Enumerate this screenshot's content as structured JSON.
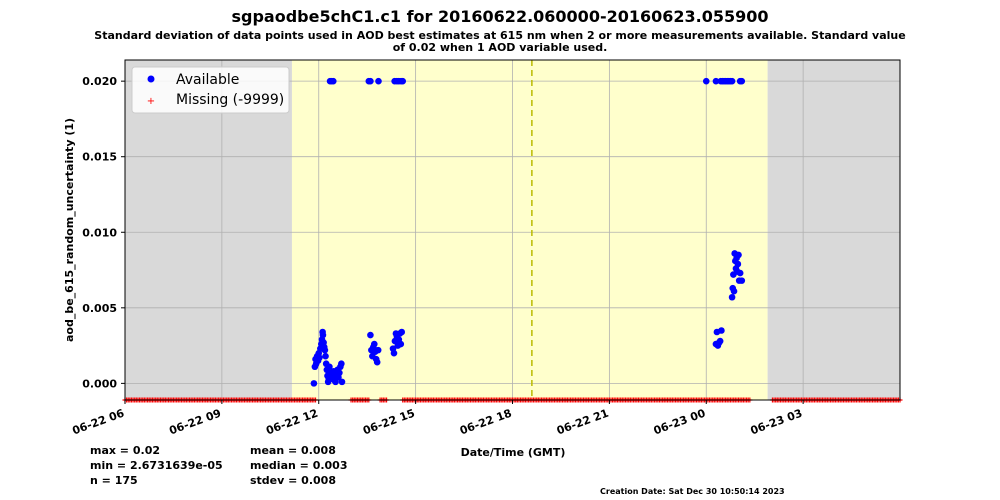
{
  "header": {
    "title": "sgpaodbe5chC1.c1 for 20160622.060000-20160623.055900",
    "subtitle": "Standard deviation of data points used in AOD best estimates at 615 nm when 2 or more measurements available. Standard value of 0.02 when 1 AOD variable used."
  },
  "stats": {
    "max": "max = 0.02",
    "min": "min = 2.6731639e-05",
    "n": "n = 175",
    "mean": "mean = 0.008",
    "median": "median = 0.003",
    "stdev": "stdev = 0.008"
  },
  "footer": {
    "creation": "Creation Date: Sat Dec 30 10:50:14 2023"
  },
  "colors": {
    "available": "#0000ff",
    "missing": "#ff0000",
    "night_shade": "#d9d9d9",
    "day_shade": "#ffffcc",
    "noon_line": "#bbbb00",
    "grid": "#b0b0b0"
  },
  "chart_data": {
    "type": "scatter",
    "title": "sgpaodbe5chC1.c1 for 20160622.060000-20160623.055900",
    "xlabel": "Date/Time (GMT)",
    "ylabel": "aod_be_615_random_uncertainty (1)",
    "x_unit": "hours since 2016-06-22 00:00 GMT",
    "xlim": [
      6.0,
      30.0
    ],
    "ylim": [
      -0.0011,
      0.0214
    ],
    "xticks": [
      6,
      9,
      12,
      15,
      18,
      21,
      24,
      27
    ],
    "xtick_labels": [
      "06-22 06",
      "06-22 09",
      "06-22 12",
      "06-22 15",
      "06-22 18",
      "06-22 21",
      "06-23 00",
      "06-23 03"
    ],
    "yticks": [
      0.0,
      0.005,
      0.01,
      0.015,
      0.02
    ],
    "ytick_labels": [
      "0.000",
      "0.005",
      "0.010",
      "0.015",
      "0.020"
    ],
    "grid": true,
    "legend": {
      "placement": "upper-left",
      "entries": [
        "Available",
        "Missing (-9999)"
      ]
    },
    "shading": {
      "night_before_end": 11.17,
      "day_start": 11.17,
      "day_end": 25.9,
      "night_after_start": 25.9
    },
    "solar_noon_x": 18.6,
    "missing_y": -0.0011,
    "missing_x_ranges": [
      [
        6.0,
        11.9
      ],
      [
        13.0,
        13.55
      ],
      [
        13.9,
        14.1
      ],
      [
        14.6,
        25.35
      ],
      [
        26.05,
        30.0
      ]
    ],
    "series": [
      {
        "name": "Available",
        "points": [
          [
            11.85,
            0.0
          ],
          [
            11.88,
            0.0011
          ],
          [
            11.9,
            0.0016
          ],
          [
            11.92,
            0.0013
          ],
          [
            11.95,
            0.0018
          ],
          [
            11.98,
            0.0015
          ],
          [
            12.0,
            0.002
          ],
          [
            12.02,
            0.0017
          ],
          [
            12.05,
            0.0023
          ],
          [
            12.08,
            0.0026
          ],
          [
            12.1,
            0.0029
          ],
          [
            12.12,
            0.0034
          ],
          [
            12.13,
            0.0032
          ],
          [
            12.15,
            0.0027
          ],
          [
            12.17,
            0.0024
          ],
          [
            12.19,
            0.0022
          ],
          [
            12.21,
            0.0018
          ],
          [
            12.23,
            0.0013
          ],
          [
            12.25,
            0.0009
          ],
          [
            12.27,
            0.0005
          ],
          [
            12.29,
            0.0001
          ],
          [
            12.31,
            0.0003
          ],
          [
            12.33,
            0.0011
          ],
          [
            12.35,
            0.0007
          ],
          [
            12.37,
            0.0004
          ],
          [
            12.4,
            0.0006
          ],
          [
            12.43,
            0.0003
          ],
          [
            12.46,
            0.0008
          ],
          [
            12.49,
            0.0002
          ],
          [
            12.52,
            0.0001
          ],
          [
            12.55,
            0.0005
          ],
          [
            12.58,
            0.0009
          ],
          [
            12.61,
            0.0004
          ],
          [
            12.64,
            0.0007
          ],
          [
            12.67,
            0.0011
          ],
          [
            12.7,
            0.0013
          ],
          [
            12.72,
            0.0001
          ],
          [
            12.35,
            0.02
          ],
          [
            12.4,
            0.02
          ],
          [
            12.45,
            0.02
          ],
          [
            13.6,
            0.0032
          ],
          [
            13.63,
            0.0022
          ],
          [
            13.66,
            0.0018
          ],
          [
            13.69,
            0.0024
          ],
          [
            13.72,
            0.0026
          ],
          [
            13.75,
            0.0021
          ],
          [
            13.78,
            0.0016
          ],
          [
            13.81,
            0.0014
          ],
          [
            13.84,
            0.0022
          ],
          [
            13.55,
            0.02
          ],
          [
            13.6,
            0.02
          ],
          [
            13.85,
            0.02
          ],
          [
            14.3,
            0.0023
          ],
          [
            14.33,
            0.002
          ],
          [
            14.36,
            0.0028
          ],
          [
            14.39,
            0.0033
          ],
          [
            14.42,
            0.0031
          ],
          [
            14.45,
            0.0025
          ],
          [
            14.48,
            0.0029
          ],
          [
            14.51,
            0.0033
          ],
          [
            14.54,
            0.0026
          ],
          [
            14.57,
            0.0034
          ],
          [
            14.35,
            0.02
          ],
          [
            14.42,
            0.02
          ],
          [
            14.48,
            0.02
          ],
          [
            14.55,
            0.02
          ],
          [
            14.6,
            0.02
          ],
          [
            24.0,
            0.02
          ],
          [
            24.3,
            0.02
          ],
          [
            24.45,
            0.02
          ],
          [
            24.5,
            0.02
          ],
          [
            24.55,
            0.02
          ],
          [
            24.6,
            0.02
          ],
          [
            24.65,
            0.02
          ],
          [
            24.7,
            0.02
          ],
          [
            24.75,
            0.02
          ],
          [
            24.8,
            0.02
          ],
          [
            25.05,
            0.02
          ],
          [
            25.1,
            0.02
          ],
          [
            24.3,
            0.0026
          ],
          [
            24.33,
            0.0034
          ],
          [
            24.36,
            0.0025
          ],
          [
            24.4,
            0.0027
          ],
          [
            24.43,
            0.0028
          ],
          [
            24.47,
            0.0035
          ],
          [
            24.8,
            0.0057
          ],
          [
            24.82,
            0.0063
          ],
          [
            24.84,
            0.0072
          ],
          [
            24.86,
            0.0061
          ],
          [
            24.88,
            0.0086
          ],
          [
            24.9,
            0.0081
          ],
          [
            24.92,
            0.0076
          ],
          [
            24.94,
            0.0083
          ],
          [
            24.96,
            0.0074
          ],
          [
            24.98,
            0.0079
          ],
          [
            25.0,
            0.0085
          ],
          [
            25.02,
            0.0068
          ],
          [
            25.05,
            0.0073
          ],
          [
            25.1,
            0.0068
          ]
        ]
      },
      {
        "name": "Missing (-9999)"
      }
    ]
  }
}
